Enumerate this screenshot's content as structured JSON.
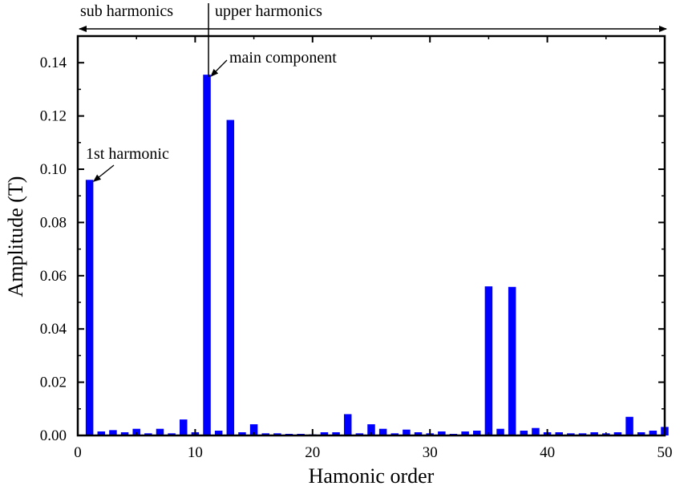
{
  "chart_data": {
    "type": "bar",
    "xlabel": "Hamonic order",
    "ylabel": "Amplitude (T)",
    "xlim": [
      0,
      50
    ],
    "ylim": [
      0,
      0.15
    ],
    "grid": false,
    "x_ticks": [
      0,
      10,
      20,
      30,
      40,
      50
    ],
    "x_tick_labels": [
      "0",
      "10",
      "20",
      "30",
      "40",
      "50"
    ],
    "y_ticks": [
      0,
      0.02,
      0.04,
      0.06,
      0.08,
      0.1,
      0.12,
      0.14
    ],
    "y_tick_labels": [
      "0.00",
      "0.02",
      "0.04",
      "0.06",
      "0.08",
      "0.10",
      "0.12",
      "0.14"
    ],
    "bar_color": "#0000ff",
    "x": [
      1,
      2,
      3,
      4,
      5,
      6,
      7,
      8,
      9,
      10,
      11,
      12,
      13,
      14,
      15,
      16,
      17,
      18,
      19,
      20,
      21,
      22,
      23,
      24,
      25,
      26,
      27,
      28,
      29,
      30,
      31,
      32,
      33,
      34,
      35,
      36,
      37,
      38,
      39,
      40,
      41,
      42,
      43,
      44,
      45,
      46,
      47,
      48,
      49,
      50
    ],
    "values": [
      0.096,
      0.0015,
      0.002,
      0.0012,
      0.0025,
      0.0008,
      0.0025,
      0.0008,
      0.006,
      0.0012,
      0.1355,
      0.0018,
      0.1185,
      0.0012,
      0.0042,
      0.0008,
      0.0008,
      0.0006,
      0.0006,
      0.0004,
      0.0012,
      0.0012,
      0.008,
      0.0008,
      0.0042,
      0.0025,
      0.0008,
      0.0022,
      0.0012,
      0.0008,
      0.0015,
      0.0006,
      0.0015,
      0.0018,
      0.056,
      0.0025,
      0.0558,
      0.0018,
      0.0028,
      0.0012,
      0.0012,
      0.0008,
      0.0008,
      0.0012,
      0.0008,
      0.0012,
      0.007,
      0.0012,
      0.0018,
      0.0032
    ],
    "annotations": [
      {
        "text": "1st harmonic",
        "x": 1,
        "y": 0.096
      },
      {
        "text": "main component",
        "x": 11,
        "y": 0.1355
      }
    ],
    "regions": {
      "divider_x": 11,
      "left_label": "sub harmonics",
      "right_label": "upper harmonics"
    }
  }
}
